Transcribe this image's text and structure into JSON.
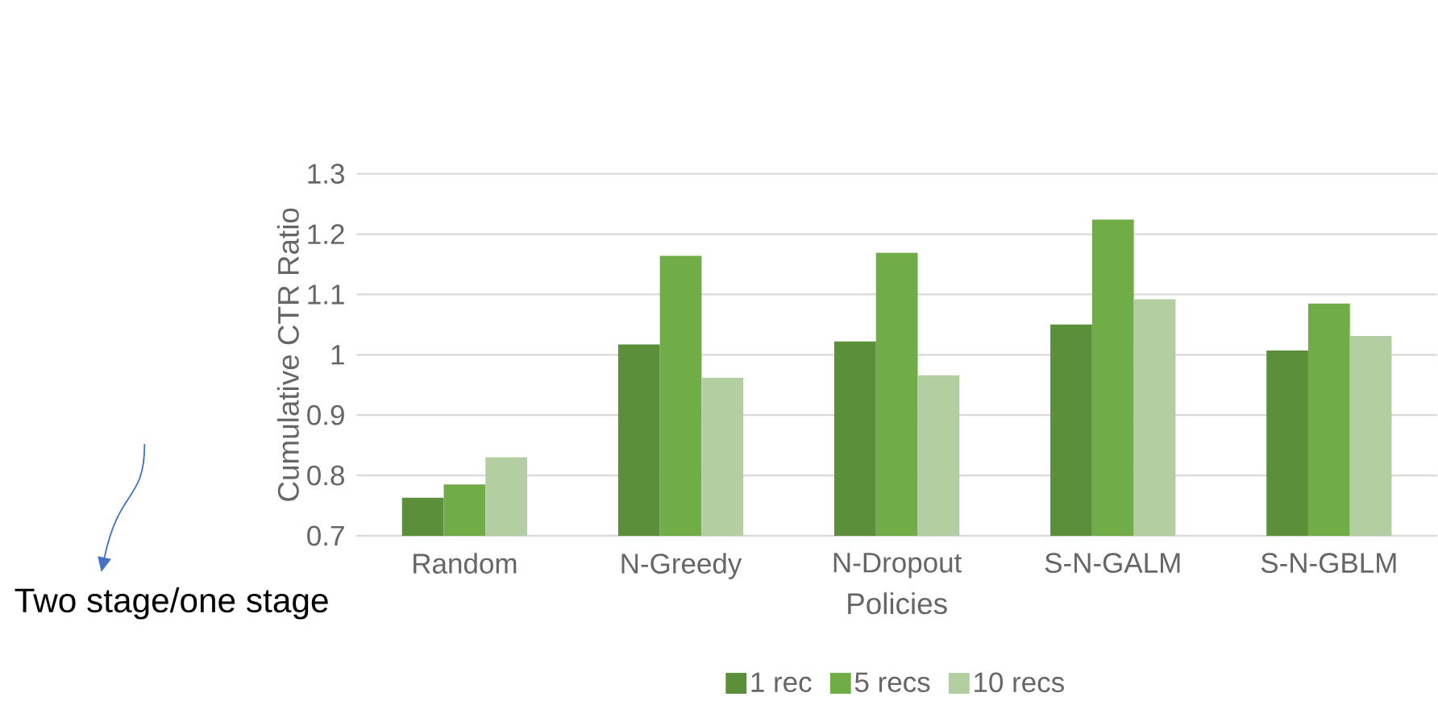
{
  "chart_data": {
    "type": "bar",
    "categories": [
      "Random",
      "N-Greedy",
      "N-Dropout",
      "S-N-GALM",
      "S-N-GBLM"
    ],
    "series": [
      {
        "name": "1 rec",
        "color": "#5b8f3a",
        "values": [
          0.763,
          1.017,
          1.022,
          1.05,
          1.007
        ]
      },
      {
        "name": "5 recs",
        "color": "#70ad47",
        "values": [
          0.785,
          1.164,
          1.169,
          1.224,
          1.085
        ]
      },
      {
        "name": "10 recs",
        "color": "#b3cfa2",
        "values": [
          0.83,
          0.962,
          0.966,
          1.092,
          1.031
        ]
      }
    ],
    "xlabel": "Policies",
    "ylabel": "Cumulative CTR Ratio",
    "ylim": [
      0.7,
      1.3
    ],
    "yticks": [
      0.7,
      0.8,
      0.9,
      1,
      1.1,
      1.2,
      1.3
    ],
    "grid": "y",
    "legend": "bottom",
    "annotations": [
      "Two stage/one stage"
    ]
  }
}
